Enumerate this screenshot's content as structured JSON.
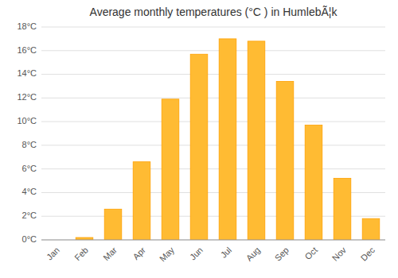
{
  "chart_data": {
    "type": "bar",
    "title": "Average monthly temperatures (°C ) in HumlebÃ¦k",
    "categories": [
      "Jan",
      "Feb",
      "Mar",
      "Apr",
      "May",
      "Jun",
      "Jul",
      "Aug",
      "Sep",
      "Oct",
      "Nov",
      "Dec"
    ],
    "values": [
      0.0,
      0.2,
      2.6,
      6.6,
      11.9,
      15.7,
      17.0,
      16.8,
      13.4,
      9.7,
      5.2,
      1.8
    ],
    "color": "#FFBB33",
    "ylim": [
      0,
      18
    ],
    "yticks": [
      {
        "value": 0,
        "label": "0°C"
      },
      {
        "value": 2,
        "label": "2°C"
      },
      {
        "value": 4,
        "label": "4°C"
      },
      {
        "value": 6,
        "label": "6°C"
      },
      {
        "value": 8,
        "label": "8°C"
      },
      {
        "value": 10,
        "label": "10°C"
      },
      {
        "value": 12,
        "label": "12°C"
      },
      {
        "value": 14,
        "label": "14°C"
      },
      {
        "value": 16,
        "label": "16°C"
      },
      {
        "value": 18,
        "label": "18°C"
      }
    ],
    "grid": true
  }
}
